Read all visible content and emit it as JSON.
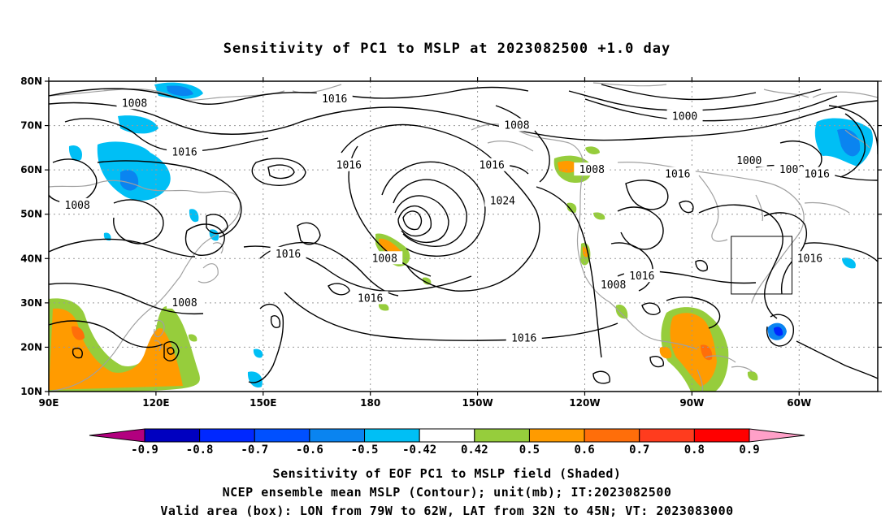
{
  "title": "Sensitivity of PC1 to MSLP at 2023082500 +1.0 day",
  "map": {
    "lat_labels": [
      "80N",
      "70N",
      "60N",
      "50N",
      "40N",
      "30N",
      "20N",
      "10N"
    ],
    "lon_labels": [
      "90E",
      "120E",
      "150E",
      "180",
      "150W",
      "120W",
      "90W",
      "60W"
    ],
    "contour_labels": [
      {
        "text": "1008",
        "lon": 114,
        "lat": 75
      },
      {
        "text": "1016",
        "lon": 170,
        "lat": 76
      },
      {
        "text": "1008",
        "lon": 221,
        "lat": 70
      },
      {
        "text": "1000",
        "lon": 268,
        "lat": 72
      },
      {
        "text": "1016",
        "lon": 128,
        "lat": 64
      },
      {
        "text": "1016",
        "lon": 174,
        "lat": 61
      },
      {
        "text": "1016",
        "lon": 214,
        "lat": 61
      },
      {
        "text": "1008",
        "lon": 242,
        "lat": 60
      },
      {
        "text": "1016",
        "lon": 266,
        "lat": 59
      },
      {
        "text": "1000",
        "lon": 286,
        "lat": 62
      },
      {
        "text": "1008",
        "lon": 298,
        "lat": 60
      },
      {
        "text": "1016",
        "lon": 305,
        "lat": 59
      },
      {
        "text": "1008",
        "lon": 98,
        "lat": 52
      },
      {
        "text": "1024",
        "lon": 217,
        "lat": 53
      },
      {
        "text": "1016",
        "lon": 157,
        "lat": 41
      },
      {
        "text": "1008",
        "lon": 184,
        "lat": 40
      },
      {
        "text": "1016",
        "lon": 256,
        "lat": 36
      },
      {
        "text": "1008",
        "lon": 248,
        "lat": 34
      },
      {
        "text": "1016",
        "lon": 303,
        "lat": 40
      },
      {
        "text": "1008",
        "lon": 128,
        "lat": 30
      },
      {
        "text": "1016",
        "lon": 180,
        "lat": 31
      },
      {
        "text": "1016",
        "lon": 223,
        "lat": 22
      }
    ],
    "valid_box": {
      "lon_min": 281,
      "lon_max": 298,
      "lat_min": 32,
      "lat_max": 45
    }
  },
  "colorbar": {
    "labels": [
      "-0.9",
      "-0.8",
      "-0.7",
      "-0.6",
      "-0.5",
      "-0.42",
      "0.42",
      "0.5",
      "0.6",
      "0.7",
      "0.8",
      "0.9"
    ],
    "colors": [
      "#b2007f",
      "#0000c0",
      "#0028ff",
      "#0050ff",
      "#0a84f0",
      "#00bff5",
      "#ffffff",
      "#96cd3c",
      "#ff9b00",
      "#ff6e0a",
      "#ff3c1e",
      "#ff0000",
      "#ffa0c8"
    ]
  },
  "captions": {
    "line1": "Sensitivity of EOF PC1 to MSLP field (Shaded)",
    "line2": "NCEP ensemble mean MSLP (Contour); unit(mb); IT:2023082500",
    "line3": "Valid area (box): LON from 79W to 62W, LAT from 32N to 45N; VT: 2023083000"
  }
}
